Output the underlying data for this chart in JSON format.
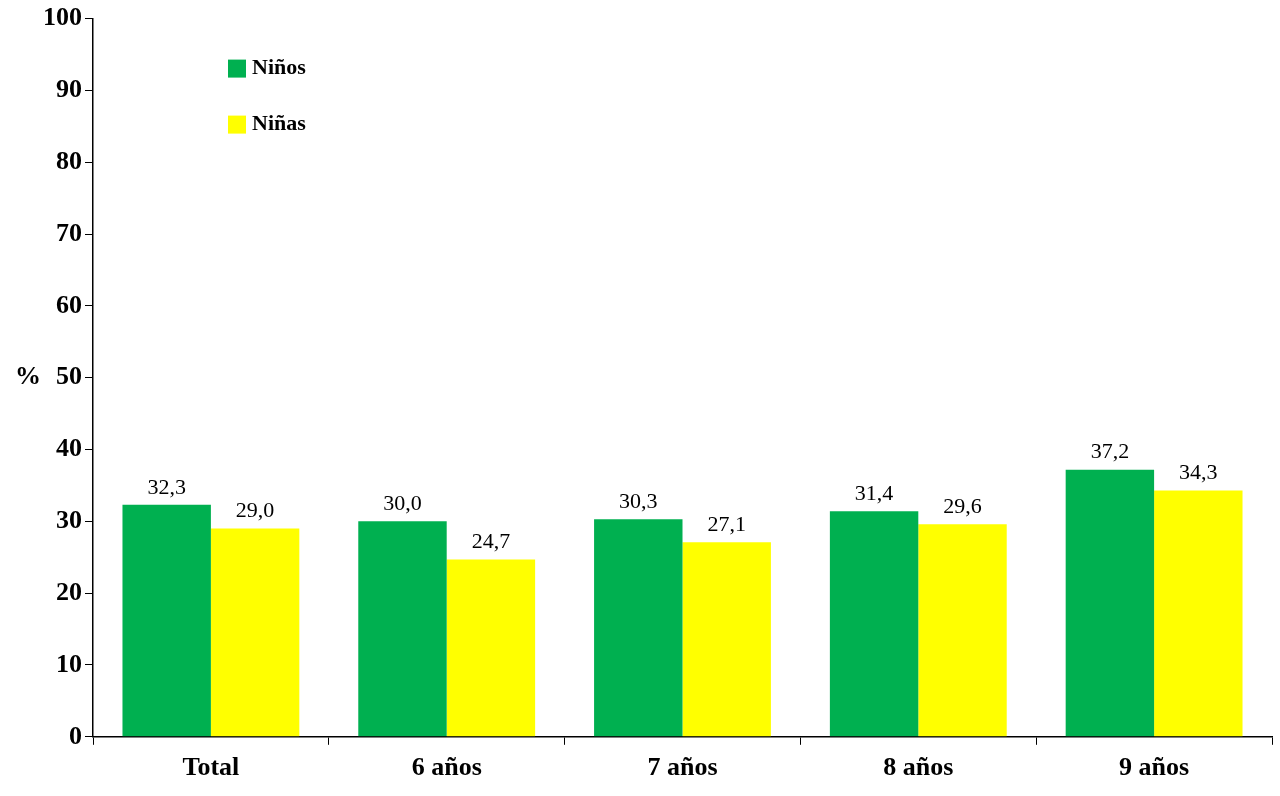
{
  "chart_data": {
    "type": "bar",
    "ylabel": "%",
    "categories": [
      "Total",
      "6 años",
      "7 años",
      "8 años",
      "9 años"
    ],
    "series": [
      {
        "name": "Niños",
        "color": "#00b050",
        "values": [
          32.3,
          30.0,
          30.3,
          31.4,
          37.2
        ]
      },
      {
        "name": "Niñas",
        "color": "#ffff00",
        "values": [
          29.0,
          24.7,
          27.1,
          29.6,
          34.3
        ]
      }
    ],
    "value_labels": [
      [
        "32,3",
        "30,0",
        "30,3",
        "31,4",
        "37,2"
      ],
      [
        "29,0",
        "24,7",
        "27,1",
        "29,6",
        "34,3"
      ]
    ],
    "ylim": [
      0,
      100
    ],
    "yticks": [
      0,
      10,
      20,
      30,
      40,
      50,
      60,
      70,
      80,
      90,
      100
    ],
    "grid": false,
    "legend": "top left"
  }
}
